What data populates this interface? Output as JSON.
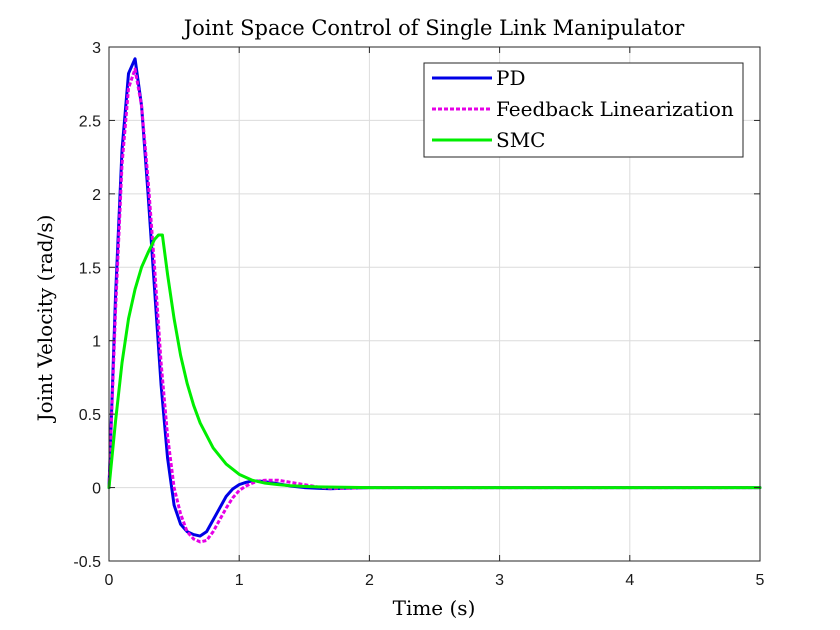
{
  "chart_data": {
    "type": "line",
    "title": "Joint Space Control of Single Link Manipulator",
    "xlabel": "Time (s)",
    "ylabel": "Joint Velocity (rad/s)",
    "xlim": [
      0,
      5
    ],
    "ylim": [
      -0.5,
      3
    ],
    "xticks": [
      0,
      1,
      2,
      3,
      4,
      5
    ],
    "yticks": [
      -0.5,
      0,
      0.5,
      1,
      1.5,
      2,
      2.5,
      3
    ],
    "xtick_labels": [
      "0",
      "1",
      "2",
      "3",
      "4",
      "5"
    ],
    "ytick_labels": [
      "-0.5",
      "0",
      "0.5",
      "1",
      "1.5",
      "2",
      "2.5",
      "3"
    ],
    "grid": true,
    "legend_position": "top-right",
    "series": [
      {
        "name": "PD",
        "color": "#0000e6",
        "dash": "solid",
        "x": [
          0,
          0.05,
          0.1,
          0.15,
          0.2,
          0.25,
          0.3,
          0.35,
          0.4,
          0.45,
          0.5,
          0.55,
          0.6,
          0.65,
          0.7,
          0.75,
          0.8,
          0.85,
          0.9,
          0.95,
          1.0,
          1.05,
          1.1,
          1.15,
          1.2,
          1.3,
          1.4,
          1.5,
          1.6,
          1.7,
          1.8,
          2.0,
          2.5,
          3.0,
          4.0,
          5.0
        ],
        "y": [
          0,
          1.3,
          2.3,
          2.82,
          2.92,
          2.6,
          2.0,
          1.35,
          0.7,
          0.2,
          -0.12,
          -0.25,
          -0.3,
          -0.32,
          -0.33,
          -0.3,
          -0.22,
          -0.14,
          -0.06,
          -0.01,
          0.02,
          0.035,
          0.045,
          0.045,
          0.04,
          0.025,
          0.01,
          0.0,
          -0.005,
          -0.008,
          -0.005,
          0,
          0,
          0,
          0,
          0
        ]
      },
      {
        "name": "Feedback Linearization",
        "color": "#e600e6",
        "dash": "dotted",
        "x": [
          0,
          0.05,
          0.1,
          0.15,
          0.2,
          0.25,
          0.3,
          0.35,
          0.4,
          0.45,
          0.5,
          0.55,
          0.6,
          0.65,
          0.7,
          0.75,
          0.8,
          0.85,
          0.9,
          0.95,
          1.0,
          1.05,
          1.1,
          1.15,
          1.2,
          1.3,
          1.4,
          1.5,
          1.6,
          1.7,
          1.8,
          2.0,
          2.5,
          3.0,
          4.0,
          5.0
        ],
        "y": [
          0,
          1.2,
          2.2,
          2.72,
          2.85,
          2.6,
          2.1,
          1.5,
          0.85,
          0.35,
          0.0,
          -0.18,
          -0.3,
          -0.35,
          -0.37,
          -0.36,
          -0.3,
          -0.22,
          -0.14,
          -0.07,
          -0.02,
          0.01,
          0.03,
          0.045,
          0.05,
          0.05,
          0.035,
          0.02,
          0.005,
          -0.005,
          -0.005,
          0,
          0,
          0,
          0,
          0
        ]
      },
      {
        "name": "SMC",
        "color": "#00ee00",
        "dash": "solid",
        "x": [
          0,
          0.05,
          0.1,
          0.15,
          0.2,
          0.25,
          0.3,
          0.35,
          0.38,
          0.41,
          0.45,
          0.5,
          0.55,
          0.6,
          0.65,
          0.7,
          0.8,
          0.9,
          1.0,
          1.1,
          1.2,
          1.3,
          1.4,
          1.5,
          1.6,
          1.8,
          2.0,
          2.5,
          3.0,
          4.0,
          5.0
        ],
        "y": [
          0,
          0.45,
          0.85,
          1.15,
          1.35,
          1.5,
          1.6,
          1.69,
          1.72,
          1.72,
          1.45,
          1.15,
          0.9,
          0.71,
          0.56,
          0.44,
          0.27,
          0.16,
          0.09,
          0.05,
          0.03,
          0.02,
          0.012,
          0.008,
          0.005,
          0.002,
          0.0,
          0,
          0,
          0,
          0
        ]
      }
    ]
  }
}
